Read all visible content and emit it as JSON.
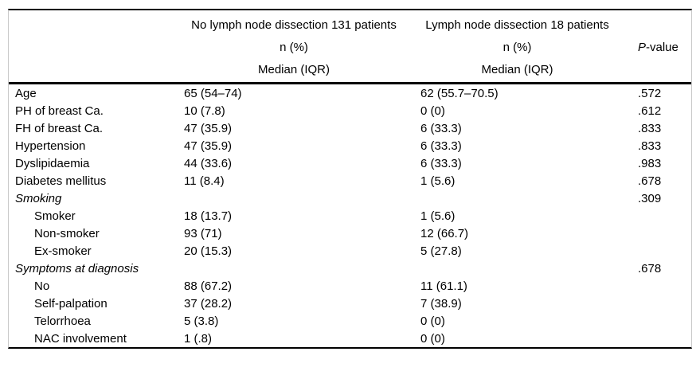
{
  "table": {
    "header": {
      "group1_title": "No lymph node dissection 131 patients",
      "group1_line2": "n (%)",
      "group1_line3": "Median (IQR)",
      "group2_title": "Lymph node dissection 18 patients",
      "group2_line2": "n (%)",
      "group2_line3": "Median (IQR)",
      "pvalue_italic": "P",
      "pvalue_rest": "-value"
    },
    "rows": [
      {
        "label": "Age",
        "indent": false,
        "section": false,
        "col2": "65 (54–74)",
        "col3": "62 (55.7–70.5)",
        "p": ".572"
      },
      {
        "label": "PH of breast Ca.",
        "indent": false,
        "section": false,
        "col2": "10 (7.8)",
        "col3": "0 (0)",
        "p": ".612"
      },
      {
        "label": "FH of breast Ca.",
        "indent": false,
        "section": false,
        "col2": "47 (35.9)",
        "col3": "6 (33.3)",
        "p": ".833"
      },
      {
        "label": "Hypertension",
        "indent": false,
        "section": false,
        "col2": "47 (35.9)",
        "col3": "6 (33.3)",
        "p": ".833"
      },
      {
        "label": "Dyslipidaemia",
        "indent": false,
        "section": false,
        "col2": "44 (33.6)",
        "col3": "6 (33.3)",
        "p": ".983"
      },
      {
        "label": "Diabetes mellitus",
        "indent": false,
        "section": false,
        "col2": "11 (8.4)",
        "col3": "1 (5.6)",
        "p": ".678"
      },
      {
        "label": "Smoking",
        "indent": false,
        "section": true,
        "col2": "",
        "col3": "",
        "p": ".309"
      },
      {
        "label": "Smoker",
        "indent": true,
        "section": false,
        "col2": "18 (13.7)",
        "col3": "1 (5.6)",
        "p": ""
      },
      {
        "label": "Non-smoker",
        "indent": true,
        "section": false,
        "col2": "93 (71)",
        "col3": "12 (66.7)",
        "p": ""
      },
      {
        "label": "Ex-smoker",
        "indent": true,
        "section": false,
        "col2": "20 (15.3)",
        "col3": "5 (27.8)",
        "p": ""
      },
      {
        "label": "Symptoms at diagnosis",
        "indent": false,
        "section": true,
        "col2": "",
        "col3": "",
        "p": ".678"
      },
      {
        "label": "No",
        "indent": true,
        "section": false,
        "col2": "88 (67.2)",
        "col3": "11 (61.1)",
        "p": ""
      },
      {
        "label": "Self-palpation",
        "indent": true,
        "section": false,
        "col2": "37 (28.2)",
        "col3": "7 (38.9)",
        "p": ""
      },
      {
        "label": "Telorrhoea",
        "indent": true,
        "section": false,
        "col2": "5 (3.8)",
        "col3": "0 (0)",
        "p": ""
      },
      {
        "label": "NAC involvement",
        "indent": true,
        "section": false,
        "col2": "1 (.8)",
        "col3": "0 (0)",
        "p": ""
      }
    ]
  }
}
